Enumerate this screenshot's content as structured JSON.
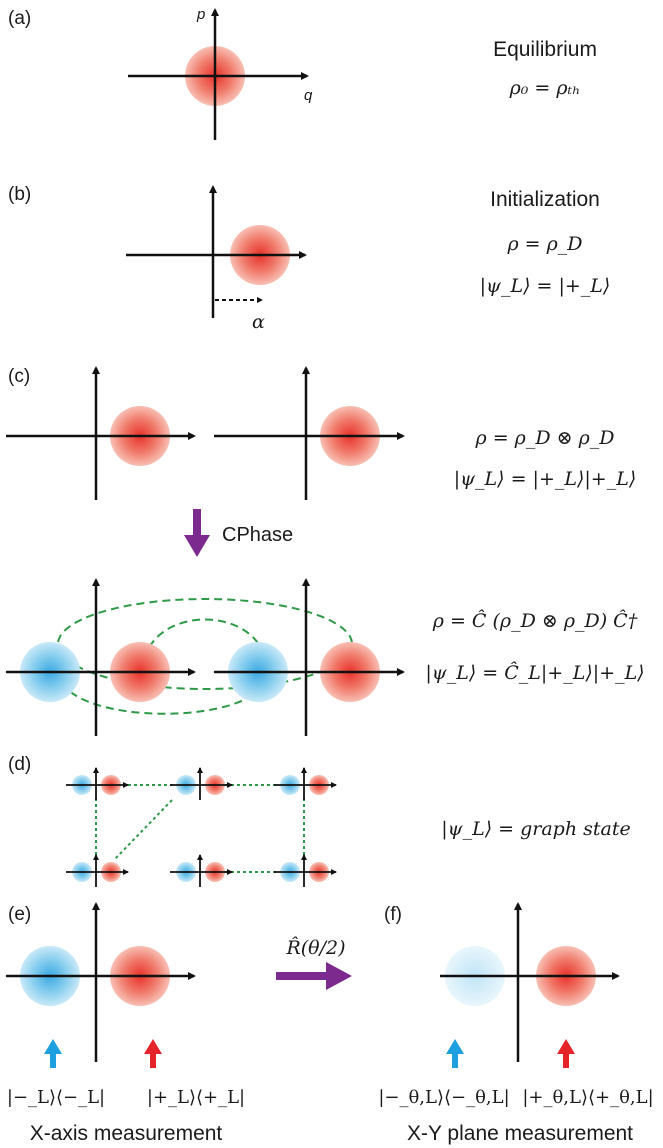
{
  "panels": {
    "a": {
      "label": "(a)",
      "title": "Equilibrium",
      "equation": "ρ₀ = ρₜₕ",
      "axis_p": "p",
      "axis_q": "q"
    },
    "b": {
      "label": "(b)",
      "title": "Initialization",
      "equation_1": "ρ = ρ_D",
      "equation_2": "|ψ_L⟩ = |+_L⟩",
      "displacement": "α"
    },
    "c": {
      "label": "(c)",
      "equation_1": "ρ = ρ_D ⊗ ρ_D",
      "equation_2": "|ψ_L⟩ = |+_L⟩|+_L⟩",
      "gate": "CPhase",
      "equation_3": "ρ = Ĉ (ρ_D ⊗ ρ_D) Ĉ†",
      "equation_4": "|ψ_L⟩ = Ĉ_L|+_L⟩|+_L⟩"
    },
    "d": {
      "label": "(d)",
      "equation": "|ψ_L⟩ = graph state"
    },
    "e": {
      "label": "(e)",
      "projector_left": "|−_L⟩⟨−_L|",
      "projector_right": "|+_L⟩⟨+_L|",
      "caption": "X-axis measurement"
    },
    "rotation": {
      "operator": "R̂(θ/2)"
    },
    "f": {
      "label": "(f)",
      "projector_left": "|−_θ,L⟩⟨−_θ,L|",
      "projector_right": "|+_θ,L⟩⟨+_θ,L|",
      "caption": "X-Y plane measurement"
    }
  },
  "colors": {
    "red_state": "#e8322a",
    "blue_state": "#3aa9e0",
    "entangle_link": "#2e9a48",
    "gate_arrow": "#7d2a8e",
    "marker_blue": "#1ea0e0",
    "marker_red": "#e5242a"
  }
}
